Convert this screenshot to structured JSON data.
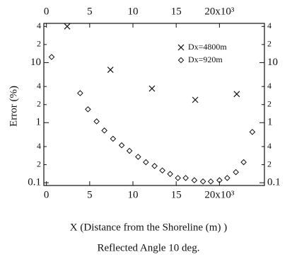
{
  "chart_data": {
    "type": "scatter",
    "y_label": "Error (%)",
    "x_label": "X (Distance from the Shoreline (m) )",
    "caption": "Reflected Angle 10 deg.",
    "xlim": [
      -0.3,
      25.2
    ],
    "xticks": [
      0,
      5,
      10,
      15,
      {
        "value": 20,
        "label": "20x10³"
      }
    ],
    "ylim": [
      0.09,
      45
    ],
    "yticks": [
      0.1,
      {
        "value": 0.2,
        "label": "2"
      },
      {
        "value": 0.4,
        "label": "4"
      },
      1,
      {
        "value": 2,
        "label": "2"
      },
      {
        "value": 4,
        "label": "4"
      },
      10,
      {
        "value": 20,
        "label": "2"
      },
      {
        "value": 40,
        "label": "4"
      }
    ],
    "log_y": true,
    "legend": "top-right",
    "series": [
      {
        "name": "Dx=4800m",
        "color": "#111111",
        "marker": "x",
        "x": [
          2.4,
          7.4,
          12.2,
          17.2,
          22.0
        ],
        "values": [
          40,
          7.6,
          3.7,
          2.4,
          3.0
        ]
      },
      {
        "name": "Dx=920m",
        "color": "#111111",
        "marker": "diamond",
        "x": [
          0.6,
          3.9,
          4.8,
          5.8,
          6.7,
          7.7,
          8.7,
          9.6,
          10.6,
          11.5,
          12.5,
          13.4,
          14.3,
          15.2,
          16.1,
          17.1,
          18.1,
          19.0,
          20.0,
          20.9,
          21.9,
          22.8,
          23.8
        ],
        "values": [
          12.4,
          3.1,
          1.67,
          1.05,
          0.74,
          0.54,
          0.42,
          0.34,
          0.27,
          0.22,
          0.19,
          0.16,
          0.14,
          0.12,
          0.12,
          0.11,
          0.105,
          0.105,
          0.11,
          0.12,
          0.15,
          0.22,
          0.7
        ]
      }
    ]
  }
}
